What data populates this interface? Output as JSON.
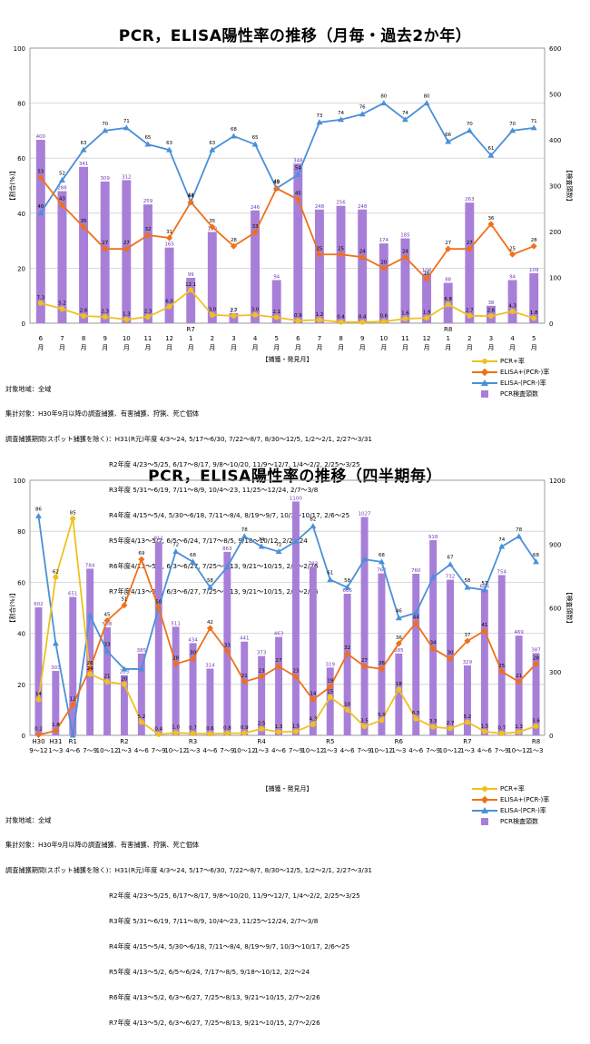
{
  "charts": [
    {
      "title": "PCR，ELISA陽性率の推移（月毎・過去2か年）",
      "ylabel_left": "【割合(%)】",
      "ylabel_right": "【検査頭数】",
      "xlabel": "【捕獲・発見月】",
      "y_ticks_left": [
        "0",
        "20",
        "40",
        "60",
        "80",
        "100"
      ],
      "y_ticks_right": [
        "0",
        "100",
        "200",
        "300",
        "400",
        "500",
        "600"
      ],
      "notes": [
        "対象地域：全域",
        "集計対象：H30年9月以降の調査捕獲、有害捕獲、狩猟、死亡個体",
        "調査捕獲期間(スポット捕獲を除く)：H31(R元)年度 4/3～24, 5/17～6/30, 7/22～8/7, 8/30～12/5, 1/2～2/1, 2/27～3/31",
        "R2年度 4/23～5/25, 6/17～8/17, 9/8～10/20, 11/9～12/7, 1/4～2/2, 2/25～3/25",
        "R3年度 5/31～6/19, 7/11～8/9, 10/4～23, 11/25～12/24, 2/7～3/8",
        "R4年度 4/15～5/4, 5/30～6/18, 7/11～8/4, 8/19～9/7, 10/3～10/17, 2/6～25",
        "R5年度4/13～5/2, 6/5～6/24, 7/17～8/5, 9/18～10/12, 2/2～24",
        "R6年度4/13～5/2, 6/3～6/27, 7/25～8/13, 9/21～10/15, 2/7～2/26",
        "R7年度4/13～5/2, 6/3～6/27, 7/25～8/13, 9/21～10/15, 2/7～2/26"
      ],
      "legend": [
        "PCR+率",
        "ELISA+(PCR-)率",
        "ELISA-(PCR-)率",
        "PCR検査頭数"
      ],
      "chart_data": {
        "type": "bar",
        "categories": [
          {
            "m": "6",
            "y": "",
            "mm": "月"
          },
          {
            "m": "7",
            "y": "",
            "mm": "月"
          },
          {
            "m": "8",
            "y": "",
            "mm": "月"
          },
          {
            "m": "9",
            "y": "",
            "mm": "月"
          },
          {
            "m": "10",
            "y": "",
            "mm": "月"
          },
          {
            "m": "11",
            "y": "",
            "mm": "月"
          },
          {
            "m": "12",
            "y": "",
            "mm": "月"
          },
          {
            "m": "1",
            "y": "R7",
            "mm": "月"
          },
          {
            "m": "2",
            "y": "",
            "mm": "月"
          },
          {
            "m": "3",
            "y": "",
            "mm": "月"
          },
          {
            "m": "4",
            "y": "",
            "mm": "月"
          },
          {
            "m": "5",
            "y": "",
            "mm": "月"
          },
          {
            "m": "6",
            "y": "",
            "mm": "月"
          },
          {
            "m": "7",
            "y": "",
            "mm": "月"
          },
          {
            "m": "8",
            "y": "",
            "mm": "月"
          },
          {
            "m": "9",
            "y": "",
            "mm": "月"
          },
          {
            "m": "10",
            "y": "",
            "mm": "月"
          },
          {
            "m": "11",
            "y": "",
            "mm": "月"
          },
          {
            "m": "12",
            "y": "",
            "mm": "月"
          },
          {
            "m": "1",
            "y": "R8",
            "mm": "月"
          },
          {
            "m": "2",
            "y": "",
            "mm": "月"
          },
          {
            "m": "3",
            "y": "",
            "mm": "月"
          },
          {
            "m": "4",
            "y": "",
            "mm": "月"
          },
          {
            "m": "5",
            "y": "",
            "mm": "月"
          }
        ],
        "bars": [
          400,
          288,
          341,
          309,
          312,
          259,
          165,
          99,
          199,
          22,
          246,
          94,
          348,
          248,
          256,
          248,
          174,
          185,
          108,
          88,
          263,
          38,
          94,
          109
        ],
        "bar_labels": [
          "400",
          "288",
          "341",
          "309",
          "312",
          "259",
          "165",
          "99",
          "199",
          "22",
          "246",
          "94",
          "348",
          "248",
          "256",
          "248",
          "174",
          "185",
          "108",
          "88",
          "263",
          "38",
          "94",
          "109"
        ],
        "pcr": [
          7.3,
          5.2,
          2.6,
          2.3,
          1.3,
          2.3,
          6.0,
          12.1,
          3.0,
          2.7,
          3.0,
          2.1,
          0.9,
          1.2,
          0.4,
          0.4,
          0.6,
          1.6,
          1.9,
          6.8,
          2.7,
          2.6,
          4.3,
          1.8
        ],
        "pcr_labels": [
          "7.3",
          "5.2",
          "2.6",
          "2.3",
          "1.3",
          "2.3",
          "6.0",
          "12.1",
          "3.0",
          "2.7",
          "3.0",
          "2.1",
          "0.9",
          "1.2",
          "0.4",
          "0.4",
          "0.6",
          "1.6",
          "1.9",
          "6.8",
          "2.7",
          "2.6",
          "4.3",
          "1.8"
        ],
        "elisa_pos": [
          53,
          43,
          35,
          27,
          27,
          32,
          31,
          44,
          35,
          28,
          33,
          49,
          45,
          25,
          25,
          24,
          20,
          24,
          16,
          27,
          27,
          36,
          25,
          28
        ],
        "elisa_neg": [
          40,
          52,
          63,
          70,
          71,
          65,
          63,
          44,
          63,
          68,
          65,
          49,
          54,
          73,
          74,
          76,
          80,
          74,
          80,
          66,
          70,
          61,
          70,
          71
        ],
        "y_left_range": [
          0,
          100
        ],
        "y_right_range": [
          0,
          600
        ]
      }
    },
    {
      "title": "PCR，ELISA陽性率の推移（四半期毎）",
      "ylabel_left": "【割合(%)】",
      "ylabel_right": "【検査頭数】",
      "xlabel": "【捕獲・発見月】",
      "y_ticks_left": [
        "0",
        "20",
        "40",
        "60",
        "80",
        "100"
      ],
      "y_ticks_right": [
        "0",
        "300",
        "600",
        "900",
        "1200"
      ],
      "notes": [
        "対象地域：全域",
        "集計対象：H30年9月以降の調査捕獲、有害捕獲、狩猟、死亡個体",
        "調査捕獲期間(スポット捕獲を除く)：H31(R元)年度 4/3～24, 5/17～6/30, 7/22～8/7, 8/30～12/5, 1/2～2/1, 2/27～3/31",
        "R2年度 4/23～5/25, 6/17～8/17, 9/8～10/20, 11/9～12/7, 1/4～2/2, 2/25～3/25",
        "R3年度 5/31～6/19, 7/11～8/9, 10/4～23, 11/25～12/24, 2/7～3/8",
        "R4年度 4/15～5/4, 5/30～6/18, 7/11～8/4, 8/19～9/7, 10/3～10/17, 2/6～25",
        "R5年度 4/13～5/2, 6/5～6/24, 7/17～8/5, 9/18～10/12, 2/2～24",
        "R6年度 4/13～5/2, 6/3～6/27, 7/25～8/13, 9/21～10/15, 2/7～2/26",
        "R7年度 4/13～5/2, 6/3～6/27, 7/25～8/13, 9/21～10/15, 2/7～2/26"
      ],
      "legend": [
        "PCR+率",
        "ELISA+(PCR-)率",
        "ELISA-(PCR-)率",
        "PCR検査頭数"
      ],
      "chart_data": {
        "type": "bar",
        "categories": [
          {
            "y": "H30",
            "q": "9～12"
          },
          {
            "y": "H31",
            "q": "1～3"
          },
          {
            "y": "R1",
            "q": "4～6"
          },
          {
            "y": "",
            "q": "7～9"
          },
          {
            "y": "",
            "q": "10～12"
          },
          {
            "y": "R2",
            "q": "1～3"
          },
          {
            "y": "",
            "q": "4～6"
          },
          {
            "y": "",
            "q": "7～9"
          },
          {
            "y": "",
            "q": "10～12"
          },
          {
            "y": "R3",
            "q": "1～3"
          },
          {
            "y": "",
            "q": "4～6"
          },
          {
            "y": "",
            "q": "7～9"
          },
          {
            "y": "",
            "q": "10～12"
          },
          {
            "y": "R4",
            "q": "1～3"
          },
          {
            "y": "",
            "q": "4～6"
          },
          {
            "y": "",
            "q": "7～9"
          },
          {
            "y": "",
            "q": "10～12"
          },
          {
            "y": "R5",
            "q": "1～3"
          },
          {
            "y": "",
            "q": "4～6"
          },
          {
            "y": "",
            "q": "7～9"
          },
          {
            "y": "",
            "q": "10～12"
          },
          {
            "y": "R6",
            "q": "1～3"
          },
          {
            "y": "",
            "q": "4～6"
          },
          {
            "y": "",
            "q": "7～9"
          },
          {
            "y": "",
            "q": "10～12"
          },
          {
            "y": "R7",
            "q": "1～3"
          },
          {
            "y": "",
            "q": "4～6"
          },
          {
            "y": "",
            "q": "7～9"
          },
          {
            "y": "",
            "q": "10～12"
          },
          {
            "y": "R8",
            "q": "1～3"
          }
        ],
        "bars": [
          602,
          303,
          651,
          784,
          508,
          283,
          385,
          911,
          511,
          434,
          314,
          863,
          441,
          373,
          463,
          1100,
          793,
          319,
          666,
          1027,
          762,
          385,
          760,
          918,
          732,
          329,
          686,
          754,
          469,
          387
        ],
        "bar_labels": [
          "602",
          "303",
          "651",
          "784",
          "508",
          "283",
          "385",
          "911",
          "511",
          "434",
          "314",
          "863",
          "441",
          "373",
          "463",
          "1100",
          "793",
          "319",
          "666",
          "1027",
          "762",
          "385",
          "760",
          "918",
          "732",
          "329",
          "686",
          "754",
          "469",
          "387"
        ],
        "pcr": [
          14,
          62,
          85,
          24,
          21,
          20,
          5.2,
          0.4,
          1.0,
          0.7,
          0.6,
          0.8,
          0.9,
          2.5,
          1.3,
          1.5,
          4.3,
          15,
          10,
          3.5,
          5.9,
          18,
          6.5,
          3.3,
          2.7,
          5.2,
          1.5,
          0.7,
          1.3,
          3.6
        ],
        "pcr_labels": [
          "14",
          "62",
          "85",
          "24",
          "21",
          "20",
          "5.2",
          "0.4",
          "1.0",
          "0.7",
          "0.6",
          "0.8",
          "0.9",
          "2.5",
          "1.3",
          "1.5",
          "4.3",
          "15",
          "10",
          "3.5",
          "5.9",
          "18",
          "6.5",
          "3.3",
          "2.7",
          "5.2",
          "1.5",
          "0.7",
          "1.3",
          "3.6"
        ],
        "elisa_pos": [
          0.2,
          1.8,
          12,
          26,
          45,
          51,
          69,
          50,
          28,
          30,
          42,
          33,
          21,
          23,
          27,
          23,
          14,
          19,
          32,
          27,
          26,
          36,
          44,
          34,
          30,
          37,
          41,
          25,
          21,
          28
        ],
        "elisa_neg": [
          86,
          36,
          0,
          47,
          33,
          26,
          26,
          50,
          72,
          68,
          58,
          66,
          78,
          74,
          72,
          76,
          82,
          61,
          58,
          69,
          68,
          46,
          48,
          62,
          67,
          58,
          57,
          74,
          78,
          68
        ],
        "neg_labels": [
          "86",
          "",
          "",
          "",
          "33",
          "",
          "",
          "",
          "72",
          "68",
          "58",
          "",
          "78",
          "74",
          "72",
          "",
          "82",
          "61",
          "58",
          "",
          "68",
          "46",
          "",
          "",
          "67",
          "58",
          "57",
          "74",
          "78",
          "68"
        ],
        "y_left_range": [
          0,
          100
        ],
        "y_right_range": [
          0,
          1200
        ]
      }
    }
  ],
  "colors": {
    "bar": "#a87fd8",
    "bar_edge": "#8a5cc4",
    "pcr": "#f0c020",
    "elisa_pos": "#f07018",
    "elisa_neg": "#4a90d8",
    "grid": "#cfcfcf"
  }
}
